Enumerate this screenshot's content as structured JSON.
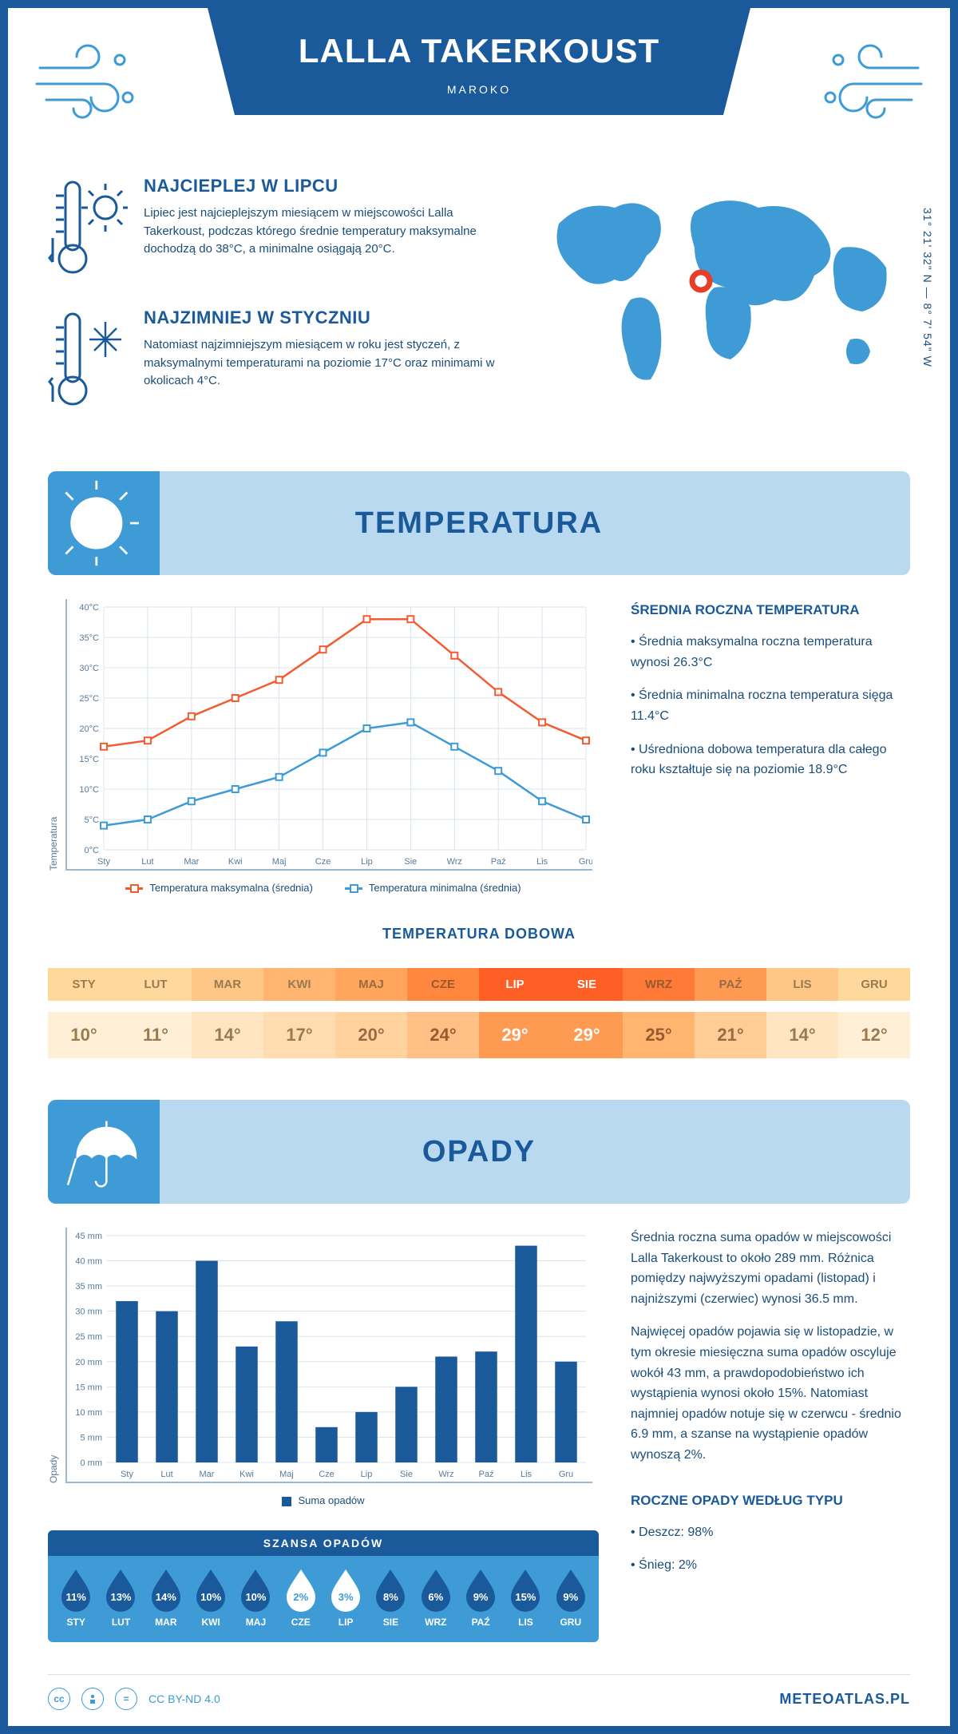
{
  "header": {
    "title": "LALLA TAKERKOUST",
    "subtitle": "MAROKO",
    "coords": "31° 21' 32\" N — 8° 7' 54\" W"
  },
  "intro": {
    "hot": {
      "title": "NAJCIEPLEJ W LIPCU",
      "text": "Lipiec jest najcieplejszym miesiącem w miejscowości Lalla Takerkoust, podczas którego średnie temperatury maksymalne dochodzą do 38°C, a minimalne osiągają 20°C."
    },
    "cold": {
      "title": "NAJZIMNIEJ W STYCZNIU",
      "text": "Natomiast najzimniejszym miesiącem w roku jest styczeń, z maksymalnymi temperaturami na poziomie 17°C oraz minimami w okolicach 4°C."
    }
  },
  "temp": {
    "banner": "TEMPERATURA",
    "sidebar_title": "ŚREDNIA ROCZNA TEMPERATURA",
    "bullets": [
      "• Średnia maksymalna roczna temperatura wynosi 26.3°C",
      "• Średnia minimalna roczna temperatura sięga 11.4°C",
      "• Uśredniona dobowa temperatura dla całego roku kształtuje się na poziomie 18.9°C"
    ],
    "chart": {
      "months": [
        "Sty",
        "Lut",
        "Mar",
        "Kwi",
        "Maj",
        "Cze",
        "Lip",
        "Sie",
        "Wrz",
        "Paź",
        "Lis",
        "Gru"
      ],
      "ymin": 0,
      "ymax": 40,
      "ystep": 5,
      "series_max": {
        "label": "Temperatura maksymalna (średnia)",
        "color": "#f25c33",
        "values": [
          17,
          18,
          22,
          25,
          28,
          33,
          38,
          38,
          32,
          26,
          21,
          18
        ]
      },
      "series_min": {
        "label": "Temperatura minimalna (średnia)",
        "color": "#3e9bd6",
        "values": [
          4,
          5,
          8,
          10,
          12,
          16,
          20,
          21,
          17,
          13,
          8,
          5
        ]
      },
      "yaxis_title": "Temperatura"
    },
    "daily_heading": "TEMPERATURA DOBOWA",
    "daily": {
      "months": [
        "STY",
        "LUT",
        "MAR",
        "KWI",
        "MAJ",
        "CZE",
        "LIP",
        "SIE",
        "WRZ",
        "PAŹ",
        "LIS",
        "GRU"
      ],
      "values": [
        "10°",
        "11°",
        "14°",
        "17°",
        "20°",
        "24°",
        "29°",
        "29°",
        "25°",
        "21°",
        "14°",
        "12°"
      ],
      "top_colors": [
        "#ffd89e",
        "#ffd89e",
        "#ffc785",
        "#ffb570",
        "#ffa55c",
        "#ff863d",
        "#ff5e25",
        "#ff5e25",
        "#ff7a37",
        "#ff9a52",
        "#ffc785",
        "#ffd89e"
      ],
      "bottom_colors": [
        "#ffefd6",
        "#ffefd6",
        "#ffe5c2",
        "#ffdcb0",
        "#ffd29e",
        "#ffbf85",
        "#ff9a52",
        "#ff9a52",
        "#ffb570",
        "#ffcc96",
        "#ffe5c2",
        "#ffefd6"
      ],
      "text_colors": [
        "#9a7a50",
        "#9a7a50",
        "#9a7a50",
        "#9a7a50",
        "#9a6a40",
        "#9a5a30",
        "#ffffff",
        "#ffffff",
        "#9a5a30",
        "#9a6a40",
        "#9a7a50",
        "#9a7a50"
      ]
    }
  },
  "precip": {
    "banner": "OPADY",
    "para1": "Średnia roczna suma opadów w miejscowości Lalla Takerkoust to około 289 mm. Różnica pomiędzy najwyższymi opadami (listopad) i najniższymi (czerwiec) wynosi 36.5 mm.",
    "para2": "Najwięcej opadów pojawia się w listopadzie, w tym okresie miesięczna suma opadów oscyluje wokół 43 mm, a prawdopodobieństwo ich wystąpienia wynosi około 15%. Natomiast najmniej opadów notuje się w czerwcu - średnio 6.9 mm, a szanse na wystąpienie opadów wynoszą 2%.",
    "chart": {
      "months": [
        "Sty",
        "Lut",
        "Mar",
        "Kwi",
        "Maj",
        "Cze",
        "Lip",
        "Sie",
        "Wrz",
        "Paź",
        "Lis",
        "Gru"
      ],
      "ymin": 0,
      "ymax": 45,
      "ystep": 5,
      "values": [
        32,
        30,
        40,
        23,
        28,
        7,
        10,
        15,
        21,
        22,
        43,
        20
      ],
      "bar_color": "#1a5a9a",
      "legend": "Suma opadów",
      "yaxis_title": "Opady"
    },
    "chance": {
      "heading": "SZANSA OPADÓW",
      "months": [
        "STY",
        "LUT",
        "MAR",
        "KWI",
        "MAJ",
        "CZE",
        "LIP",
        "SIE",
        "WRZ",
        "PAŹ",
        "LIS",
        "GRU"
      ],
      "pct": [
        "11%",
        "13%",
        "14%",
        "10%",
        "10%",
        "2%",
        "3%",
        "8%",
        "6%",
        "9%",
        "15%",
        "9%"
      ],
      "drop_fill": [
        "#1a5a9a",
        "#1a5a9a",
        "#1a5a9a",
        "#1a5a9a",
        "#1a5a9a",
        "#ffffff",
        "#ffffff",
        "#1a5a9a",
        "#1a5a9a",
        "#1a5a9a",
        "#1a5a9a",
        "#1a5a9a"
      ],
      "drop_text": [
        "#ffffff",
        "#ffffff",
        "#ffffff",
        "#ffffff",
        "#ffffff",
        "#3e9bd6",
        "#3e9bd6",
        "#ffffff",
        "#ffffff",
        "#ffffff",
        "#ffffff",
        "#ffffff"
      ]
    },
    "bytype_title": "ROCZNE OPADY WEDŁUG TYPU",
    "bytype": [
      "• Deszcz: 98%",
      "• Śnieg: 2%"
    ]
  },
  "footer": {
    "license": "CC BY-ND 4.0",
    "site": "METEOATLAS.PL"
  }
}
